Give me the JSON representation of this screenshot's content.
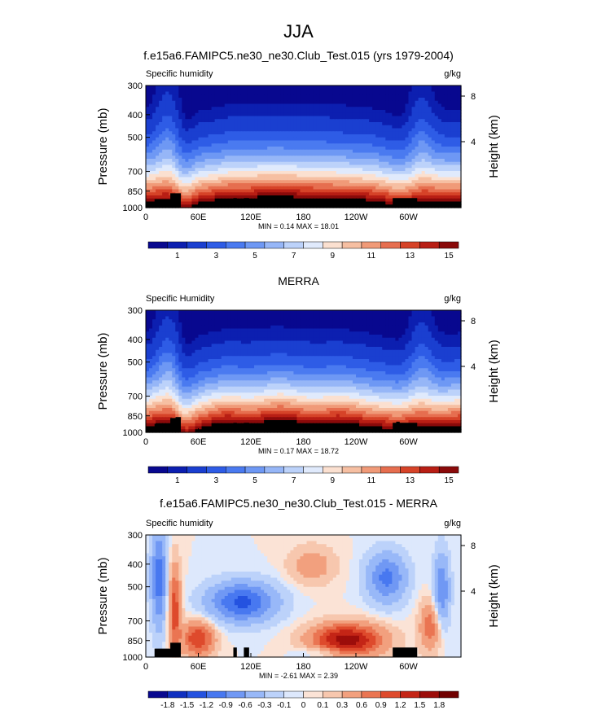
{
  "figure": {
    "title": "JJA"
  },
  "chart_data": [
    {
      "type": "heatmap",
      "title": "f.e15a6.FAMIPC5.ne30_ne30.Club_Test.015 (yrs 1979-2004)",
      "left_label": "Specific humidity",
      "right_label": "g/kg",
      "ylabel": "Pressure (mb)",
      "ylabel_right": "Height (km)",
      "y_ticks": [
        "300",
        "400",
        "500",
        "700",
        "850",
        "1000"
      ],
      "y_right_ticks": [
        "8",
        "4"
      ],
      "x_ticks": [
        "0",
        "60E",
        "120E",
        "180",
        "120W",
        "60W"
      ],
      "x_range": [
        0,
        360
      ],
      "stats": "MIN =  0.14  MAX = 18.01",
      "colorbar_labels": [
        "1",
        "3",
        "5",
        "7",
        "9",
        "11",
        "13",
        "15"
      ]
    },
    {
      "type": "heatmap",
      "title": "MERRA",
      "left_label": "Specific Humidity",
      "right_label": "g/kg",
      "ylabel": "Pressure (mb)",
      "ylabel_right": "Height (km)",
      "y_ticks": [
        "300",
        "400",
        "500",
        "700",
        "850",
        "1000"
      ],
      "y_right_ticks": [
        "8",
        "4"
      ],
      "x_ticks": [
        "0",
        "60E",
        "120E",
        "180",
        "120W",
        "60W"
      ],
      "x_range": [
        0,
        360
      ],
      "stats": "MIN =  0.17  MAX = 18.72",
      "colorbar_labels": [
        "1",
        "3",
        "5",
        "7",
        "9",
        "11",
        "13",
        "15"
      ]
    },
    {
      "type": "heatmap",
      "title": "f.e15a6.FAMIPC5.ne30_ne30.Club_Test.015 - MERRA",
      "left_label": "Specific humidity",
      "right_label": "g/kg",
      "ylabel": "Pressure (mb)",
      "ylabel_right": "Height (km)",
      "y_ticks": [
        "300",
        "400",
        "500",
        "700",
        "850",
        "1000"
      ],
      "y_right_ticks": [
        "8",
        "4"
      ],
      "x_ticks": [
        "0",
        "60E",
        "120E",
        "180",
        "120W",
        "60W"
      ],
      "x_range": [
        0,
        360
      ],
      "stats": "MIN = -2.61  MAX =  2.39",
      "colorbar_labels": [
        "-1.8",
        "-1.5",
        "-1.2",
        "-0.9",
        "-0.6",
        "-0.3",
        "-0.1",
        "0",
        "0.1",
        "0.3",
        "0.6",
        "0.9",
        "1.2",
        "1.5",
        "1.8"
      ]
    }
  ],
  "colors": {
    "abs_scale": [
      "#08088f",
      "#0c1fb0",
      "#1a3fd0",
      "#2e5ce6",
      "#4a7af0",
      "#6e98f4",
      "#96b6f7",
      "#bcd2fa",
      "#e0eafc",
      "#fbe0d0",
      "#f6bfa2",
      "#f09a78",
      "#e66e4f",
      "#d64328",
      "#b81e14",
      "#8a0a0a"
    ],
    "diff_scale": [
      "#08088f",
      "#1030c0",
      "#2452e0",
      "#4878f0",
      "#7098f4",
      "#98b8f8",
      "#bcd2fa",
      "#dde8fc",
      "#fbe3d6",
      "#f7c7ae",
      "#f2a07e",
      "#ea7552",
      "#de4a2c",
      "#c42516",
      "#9c0d0a",
      "#700000"
    ],
    "land": "#000000"
  }
}
